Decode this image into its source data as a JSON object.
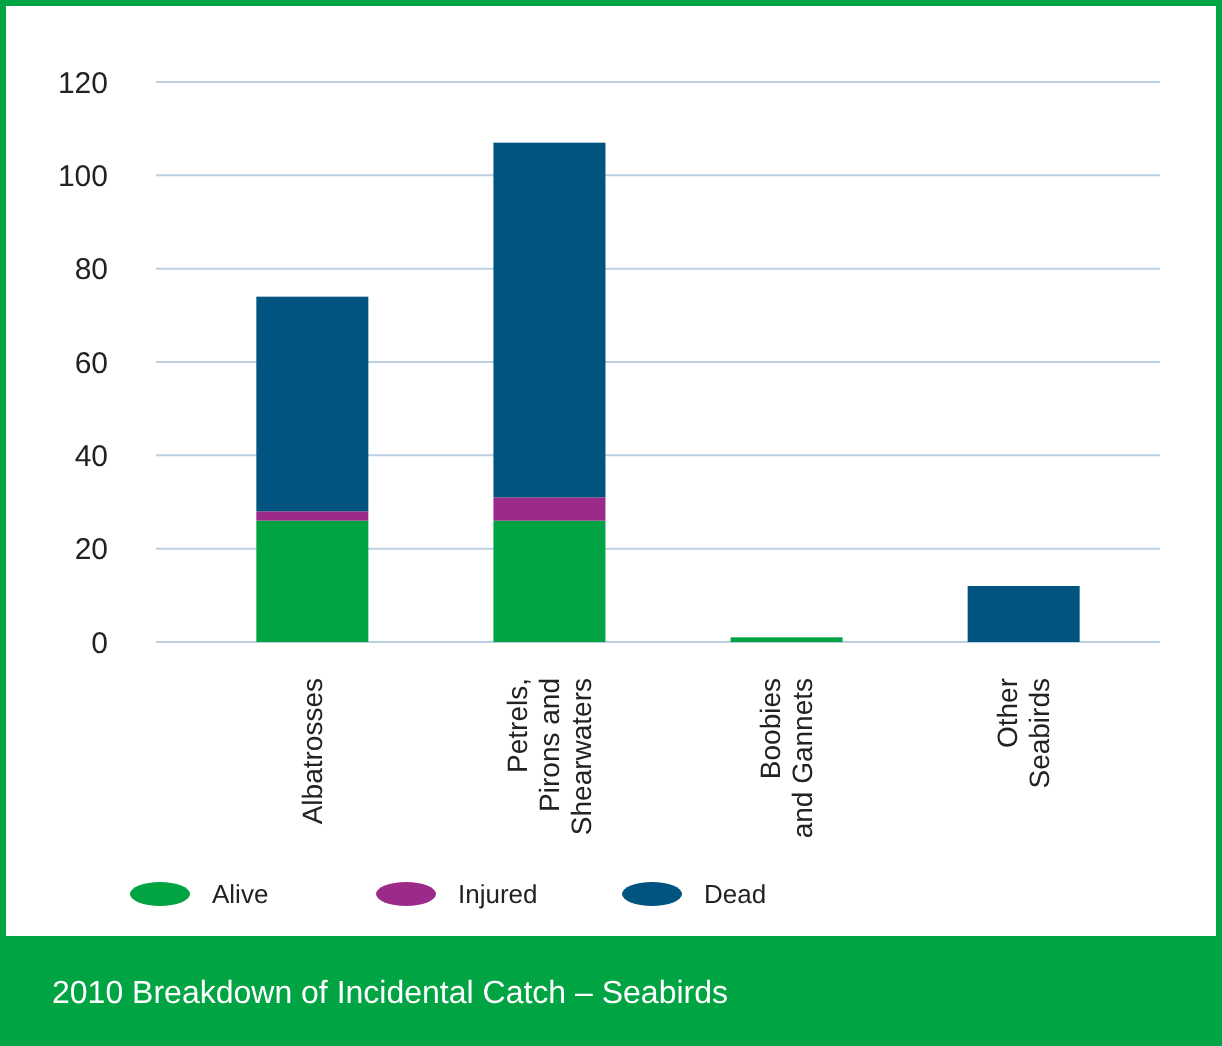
{
  "chart_data": {
    "type": "bar",
    "title": "2010 Breakdown of Incidental Catch – Seabirds",
    "categories": [
      "Albatrosses",
      "Petrels,\nPirons and\nShearwaters",
      "Boobies\nand Gannets",
      "Other\nSeabirds"
    ],
    "stacked": true,
    "series": [
      {
        "name": "Alive",
        "color": "#00a443",
        "values": [
          26,
          26,
          1,
          0
        ]
      },
      {
        "name": "Injured",
        "color": "#9b2a88",
        "values": [
          2,
          5,
          0,
          0
        ]
      },
      {
        "name": "Dead",
        "color": "#00547f",
        "values": [
          46,
          76,
          0,
          12
        ]
      }
    ],
    "ylim": [
      0,
      120
    ],
    "yticks": [
      0,
      20,
      40,
      60,
      80,
      100,
      120
    ],
    "grid": "y",
    "legend": "bottom left"
  }
}
